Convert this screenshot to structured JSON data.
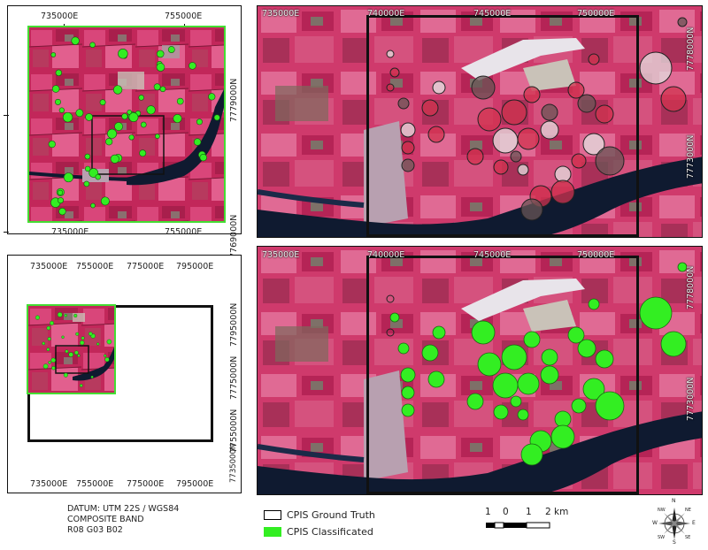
{
  "top_left_map": {
    "x_labels_top": [
      "735000E",
      "755000E"
    ],
    "x_labels_bottom": [
      "735000E",
      "755000E"
    ],
    "y_labels": [
      "7779000N",
      "7769000N"
    ]
  },
  "bottom_left_map": {
    "x_labels": [
      "735000E",
      "755000E",
      "775000E",
      "795000E"
    ],
    "y_labels": [
      "7795000N",
      "7775000N",
      "7755000N",
      "7735000N"
    ]
  },
  "top_right_map": {
    "x_labels": [
      "735000E",
      "740000E",
      "745000E",
      "750000E"
    ],
    "y_labels": [
      "7778000N",
      "7773000N"
    ]
  },
  "bottom_right_map": {
    "x_labels": [
      "735000E",
      "740000E",
      "745000E",
      "750000E"
    ],
    "y_labels": [
      "7778000N",
      "7773000N"
    ]
  },
  "info": {
    "datum": "DATUM: UTM 22S / WGS84",
    "composite": "COMPOSITE BAND",
    "bands": "R08 G03 B02"
  },
  "legend": {
    "ground_truth": "CPIS Ground Truth",
    "classified": "CPIS Classificated",
    "ground_truth_color": "#000000",
    "classified_color": "#33ee22"
  },
  "scale_bar": {
    "labels": [
      "1",
      "0",
      "1",
      "2 km"
    ]
  },
  "compass": {
    "N": "N",
    "S": "S",
    "E": "E",
    "W": "W",
    "NE": "NE",
    "NW": "NW",
    "SE": "SE",
    "SW": "SW"
  },
  "colors": {
    "vegetation": "#c2275a",
    "field_pink": "#e05e8c",
    "bare_soil": "#c9c2b8",
    "water": "#0f1a30",
    "urban": "#b8a0b0",
    "classified_green": "#33ee22",
    "overview_green_border": "#44dd33"
  }
}
